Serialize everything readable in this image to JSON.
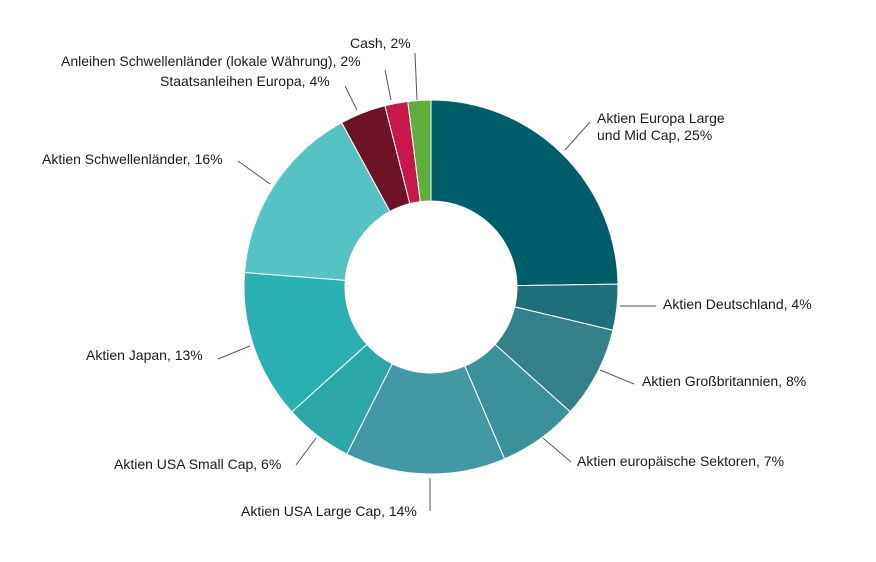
{
  "chart_data": {
    "type": "pie",
    "donut": true,
    "title": "",
    "slices": [
      {
        "label": "Aktien Europa Large und Mid Cap, 25%",
        "value": 25,
        "color": "#005E6A"
      },
      {
        "label": "Aktien Deutschland, 4%",
        "value": 4,
        "color": "#1D6F79"
      },
      {
        "label": "Aktien Großbritannien, 8%",
        "value": 8,
        "color": "#34818A"
      },
      {
        "label": "Aktien europäische Sektoren, 7%",
        "value": 7,
        "color": "#3A9199"
      },
      {
        "label": "Aktien USA Large Cap, 14%",
        "value": 14,
        "color": "#4399A3"
      },
      {
        "label": "Aktien USA Small Cap, 6%",
        "value": 6,
        "color": "#2DA6A6"
      },
      {
        "label": "Aktien Japan, 13%",
        "value": 13,
        "color": "#2BB0B1"
      },
      {
        "label": "Aktien Schwellenländer, 16%",
        "value": 16,
        "color": "#55C2C4"
      },
      {
        "label": "Staatsanleihen Europa, 4%",
        "value": 4,
        "color": "#6E1228"
      },
      {
        "label": "Anleihen Schwellenländer (lokale Währung), 2%",
        "value": 2,
        "color": "#C8174A"
      },
      {
        "label": "Cash, 2%",
        "value": 2,
        "color": "#5DAE3D"
      }
    ]
  }
}
